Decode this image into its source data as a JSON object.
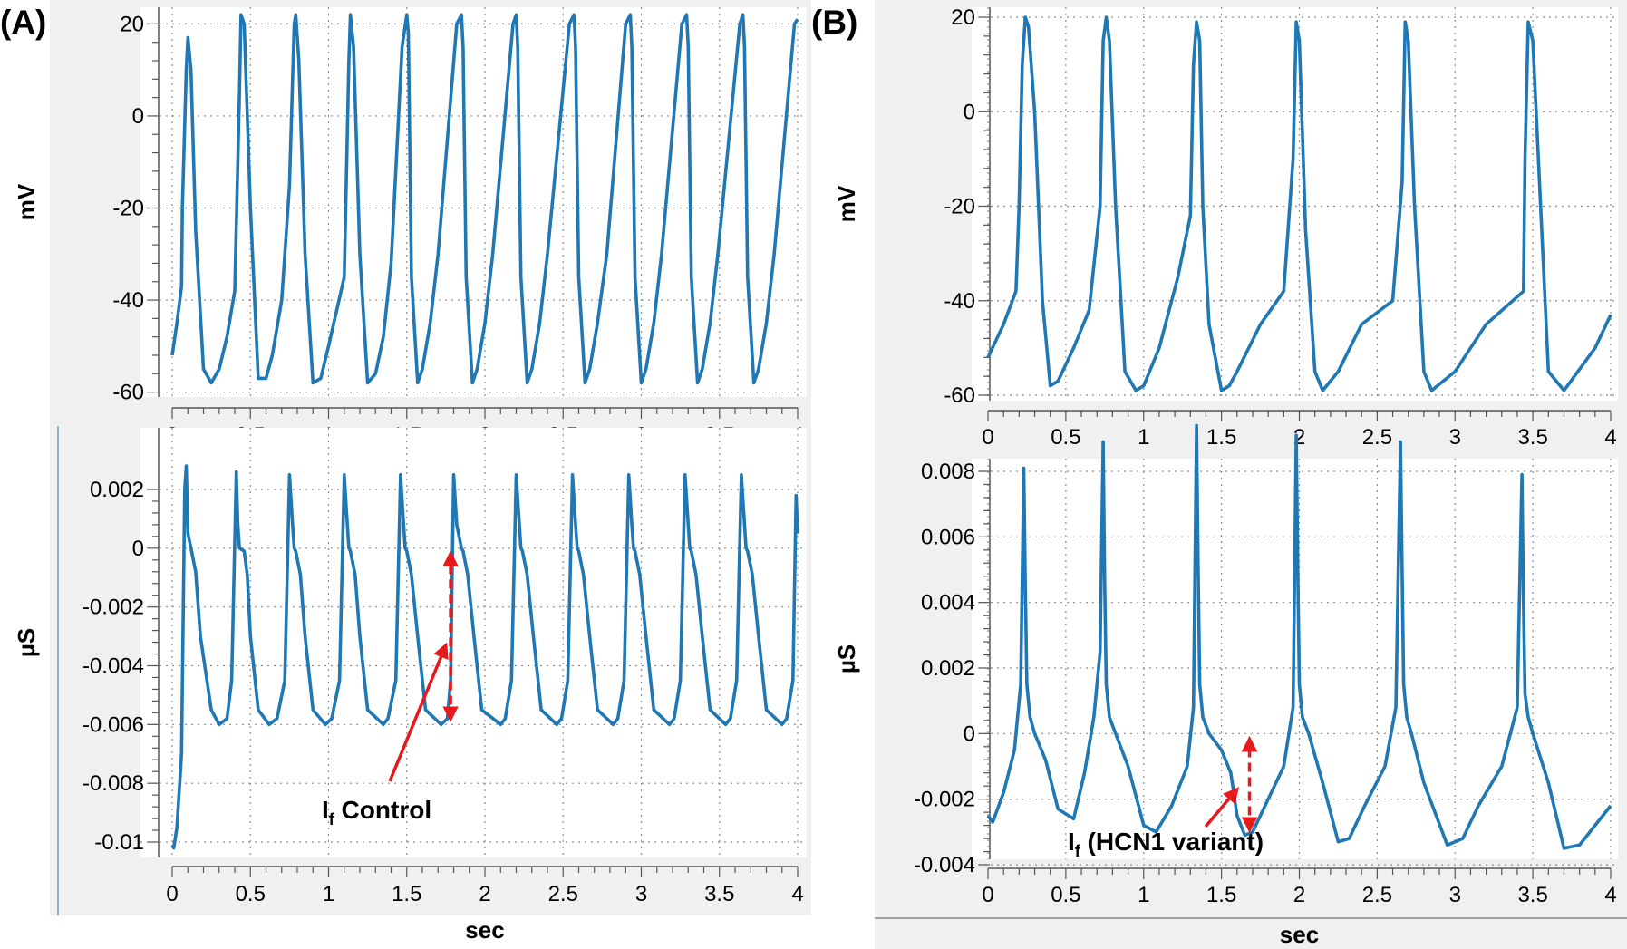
{
  "colors": {
    "trace": "#1f77b4",
    "annotation": "#e8191c",
    "plot_bg": "#ffffff",
    "frame_bg": "#f0f0f0",
    "grid": "#8c8c8c"
  },
  "panels": [
    {
      "id": "A",
      "label": "(A)"
    },
    {
      "id": "B",
      "label": "(B)"
    }
  ],
  "chart_data": [
    {
      "panel": "A",
      "type": "line",
      "title": "",
      "xlabel": "",
      "ylabel": "mV",
      "xlim": [
        0,
        4
      ],
      "ylim": [
        -61,
        24
      ],
      "xticks": [
        "0",
        "0.5",
        "1",
        "1.5",
        "2",
        "2.5",
        "3",
        "3.5",
        "4"
      ],
      "yticks": [
        "20",
        "0",
        "-20",
        "-40",
        "-60"
      ],
      "grid": true,
      "annotations": [],
      "series": [
        {
          "x": [
            0,
            0.03,
            0.06,
            0.065,
            0.09,
            0.1,
            0.12,
            0.15,
            0.2,
            0.25,
            0.3,
            0.35,
            0.4,
            0.43,
            0.44,
            0.46,
            0.5,
            0.55,
            0.6,
            0.64,
            0.7,
            0.75,
            0.78,
            0.79,
            0.81,
            0.85,
            0.9,
            0.95,
            1.0,
            1.1,
            1.13,
            1.14,
            1.16,
            1.2,
            1.25,
            1.3,
            1.35,
            1.4,
            1.47,
            1.5,
            1.51,
            1.53,
            1.57,
            1.6,
            1.65,
            1.7,
            1.82,
            1.85,
            1.86,
            1.88,
            1.92,
            1.95,
            2.0,
            2.05,
            2.18,
            2.2,
            2.21,
            2.23,
            2.27,
            2.3,
            2.35,
            2.4,
            2.54,
            2.57,
            2.58,
            2.6,
            2.64,
            2.67,
            2.72,
            2.78,
            2.9,
            2.93,
            2.94,
            2.96,
            3.0,
            3.03,
            3.08,
            3.13,
            3.26,
            3.29,
            3.3,
            3.32,
            3.36,
            3.39,
            3.44,
            3.49,
            3.63,
            3.65,
            3.66,
            3.68,
            3.72,
            3.75,
            3.8,
            3.85,
            3.98,
            4.0
          ],
          "y": [
            -52,
            -45,
            -37,
            -20,
            10,
            17,
            10,
            -25,
            -55,
            -58,
            -55,
            -48,
            -38,
            5,
            22,
            20,
            -20,
            -57,
            -57,
            -52,
            -40,
            -15,
            20,
            22,
            12,
            -30,
            -58,
            -57,
            -50,
            -35,
            12,
            22,
            15,
            -30,
            -58,
            -56,
            -48,
            -32,
            15,
            22,
            18,
            -35,
            -58,
            -55,
            -45,
            -30,
            20,
            22,
            15,
            -35,
            -58,
            -55,
            -45,
            -30,
            20,
            22,
            15,
            -35,
            -58,
            -55,
            -45,
            -30,
            20,
            22,
            15,
            -35,
            -58,
            -55,
            -45,
            -30,
            20,
            22,
            15,
            -35,
            -58,
            -55,
            -45,
            -30,
            20,
            22,
            15,
            -35,
            -58,
            -55,
            -45,
            -30,
            20,
            22,
            15,
            -35,
            -58,
            -55,
            -45,
            -30,
            20,
            21
          ]
        }
      ]
    },
    {
      "panel": "A",
      "type": "line",
      "title": "",
      "xlabel": "sec",
      "ylabel": "µS",
      "xlim": [
        0,
        4
      ],
      "ylim": [
        -0.0105,
        0.0033
      ],
      "xticks": [
        "0",
        "0.5",
        "1",
        "1.5",
        "2",
        "2.5",
        "3",
        "3.5",
        "4"
      ],
      "yticks": [
        "0.002",
        "0",
        "-0.002",
        "-0.004",
        "-0.006",
        "-0.008",
        "-0.01"
      ],
      "grid": true,
      "annotations": [
        {
          "text": "If Control",
          "main": "I",
          "sub": "f",
          "rest": " Control",
          "target": [
            1.75,
            -0.0033
          ],
          "arrow_between": [
            [
              1.78,
              -0.006
            ],
            [
              1.78,
              0
            ]
          ]
        }
      ],
      "series": [
        {
          "x": [
            0,
            0.01,
            0.03,
            0.06,
            0.08,
            0.09,
            0.1,
            0.12,
            0.15,
            0.18,
            0.25,
            0.3,
            0.35,
            0.38,
            0.41,
            0.42,
            0.43,
            0.46,
            0.48,
            0.5,
            0.55,
            0.62,
            0.67,
            0.72,
            0.75,
            0.77,
            0.78,
            0.79,
            0.82,
            0.85,
            0.9,
            0.98,
            1.02,
            1.07,
            1.1,
            1.12,
            1.13,
            1.14,
            1.17,
            1.2,
            1.25,
            1.35,
            1.38,
            1.43,
            1.46,
            1.48,
            1.49,
            1.5,
            1.53,
            1.57,
            1.62,
            1.72,
            1.76,
            1.78,
            1.8,
            1.82,
            1.85,
            1.86,
            1.89,
            1.93,
            1.98,
            2.1,
            2.13,
            2.17,
            2.2,
            2.22,
            2.23,
            2.24,
            2.27,
            2.31,
            2.36,
            2.46,
            2.49,
            2.53,
            2.56,
            2.58,
            2.59,
            2.6,
            2.63,
            2.67,
            2.72,
            2.82,
            2.85,
            2.89,
            2.92,
            2.94,
            2.95,
            2.96,
            2.99,
            3.03,
            3.08,
            3.18,
            3.21,
            3.25,
            3.28,
            3.3,
            3.31,
            3.32,
            3.35,
            3.39,
            3.44,
            3.54,
            3.57,
            3.61,
            3.64,
            3.66,
            3.67,
            3.68,
            3.71,
            3.75,
            3.8,
            3.9,
            3.93,
            3.97,
            3.99,
            4.0
          ],
          "y": [
            -0.0101,
            -0.0102,
            -0.0095,
            -0.007,
            0.002,
            0.0028,
            0.0005,
            0.0,
            -0.0008,
            -0.003,
            -0.0055,
            -0.006,
            -0.0058,
            -0.0045,
            0.0026,
            0.0008,
            0.0,
            -0.0001,
            -0.0009,
            -0.003,
            -0.0055,
            -0.006,
            -0.0058,
            -0.0045,
            0.0025,
            0.0008,
            0.0,
            -0.0001,
            -0.0009,
            -0.003,
            -0.0055,
            -0.006,
            -0.0058,
            -0.0045,
            0.0025,
            0.0008,
            0.0,
            -0.0001,
            -0.0009,
            -0.003,
            -0.0055,
            -0.006,
            -0.0058,
            -0.0045,
            0.0025,
            0.0008,
            0.0,
            -0.0001,
            -0.0009,
            -0.003,
            -0.0055,
            -0.006,
            -0.0058,
            -0.0045,
            0.0025,
            0.0008,
            0.0,
            -0.0001,
            -0.0009,
            -0.003,
            -0.0055,
            -0.006,
            -0.0058,
            -0.0045,
            0.0025,
            0.0008,
            0.0,
            -0.0001,
            -0.0009,
            -0.003,
            -0.0055,
            -0.006,
            -0.0058,
            -0.0045,
            0.0025,
            0.0008,
            0.0,
            -0.0001,
            -0.0009,
            -0.003,
            -0.0055,
            -0.006,
            -0.0058,
            -0.0045,
            0.0025,
            0.0008,
            0.0,
            -0.0001,
            -0.0009,
            -0.003,
            -0.0055,
            -0.006,
            -0.0058,
            -0.0045,
            0.0025,
            0.0008,
            0.0,
            -0.0001,
            -0.0009,
            -0.003,
            -0.0055,
            -0.006,
            -0.0058,
            -0.0045,
            0.0025,
            0.0008,
            0.0,
            -0.0001,
            -0.0009,
            -0.003,
            -0.0055,
            -0.006,
            -0.0058,
            -0.0045,
            0.0018,
            0.0005
          ]
        }
      ]
    },
    {
      "panel": "B",
      "type": "line",
      "title": "",
      "xlabel": "",
      "ylabel": "mV",
      "xlim": [
        0,
        4
      ],
      "ylim": [
        -61,
        22
      ],
      "xticks": [
        "0",
        "0.5",
        "1",
        "1.5",
        "2",
        "2.5",
        "3",
        "3.5",
        "4"
      ],
      "yticks": [
        "20",
        "0",
        "-20",
        "-40",
        "-60"
      ],
      "grid": true,
      "annotations": [],
      "series": [
        {
          "x": [
            0,
            0.1,
            0.18,
            0.2,
            0.22,
            0.24,
            0.26,
            0.3,
            0.35,
            0.4,
            0.45,
            0.55,
            0.65,
            0.72,
            0.74,
            0.76,
            0.78,
            0.82,
            0.88,
            0.95,
            1.0,
            1.1,
            1.22,
            1.3,
            1.32,
            1.34,
            1.36,
            1.38,
            1.42,
            1.5,
            1.55,
            1.6,
            1.75,
            1.9,
            1.96,
            1.98,
            2.0,
            2.04,
            2.1,
            2.15,
            2.25,
            2.4,
            2.6,
            2.66,
            2.68,
            2.7,
            2.74,
            2.8,
            2.85,
            3.0,
            3.2,
            3.44,
            3.45,
            3.47,
            3.5,
            3.55,
            3.6,
            3.7,
            3.9,
            4.0
          ],
          "y": [
            -52,
            -45,
            -38,
            -20,
            10,
            20,
            18,
            0,
            -40,
            -58,
            -57,
            -50,
            -42,
            -20,
            15,
            20,
            15,
            -20,
            -55,
            -59,
            -58,
            -50,
            -35,
            -22,
            10,
            19,
            15,
            -20,
            -45,
            -59,
            -58,
            -55,
            -45,
            -38,
            -10,
            19,
            15,
            -25,
            -55,
            -59,
            -55,
            -45,
            -40,
            -15,
            19,
            15,
            -20,
            -55,
            -59,
            -55,
            -45,
            -38,
            -10,
            19,
            15,
            -20,
            -55,
            -59,
            -50,
            -43
          ]
        }
      ]
    },
    {
      "panel": "B",
      "type": "line",
      "title": "",
      "xlabel": "sec",
      "ylabel": "µS",
      "xlim": [
        0,
        4
      ],
      "ylim": [
        -0.0042,
        0.0096
      ],
      "xticks": [
        "0",
        "0.5",
        "1",
        "1.5",
        "2",
        "2.5",
        "3",
        "3.5",
        "4"
      ],
      "yticks": [
        "0.008",
        "0.006",
        "0.004",
        "0.002",
        "0",
        "-0.002",
        "-0.004"
      ],
      "grid": true,
      "annotations": [
        {
          "text": "If (HCN1 variant)",
          "main": "I",
          "sub": "f",
          "rest": " (HCN1 variant)",
          "target": [
            1.6,
            -0.0017
          ],
          "arrow_between": [
            [
              1.68,
              -0.0031
            ],
            [
              1.68,
              0.0
            ]
          ]
        }
      ],
      "series": [
        {
          "x": [
            0,
            0.03,
            0.1,
            0.17,
            0.21,
            0.23,
            0.24,
            0.25,
            0.27,
            0.3,
            0.37,
            0.45,
            0.55,
            0.62,
            0.68,
            0.72,
            0.74,
            0.75,
            0.76,
            0.78,
            0.82,
            0.9,
            1.0,
            1.08,
            1.18,
            1.28,
            1.32,
            1.34,
            1.35,
            1.36,
            1.38,
            1.42,
            1.5,
            1.56,
            1.6,
            1.65,
            1.7,
            1.78,
            1.9,
            1.96,
            1.98,
            1.99,
            2.0,
            2.02,
            2.06,
            2.15,
            2.25,
            2.32,
            2.42,
            2.55,
            2.62,
            2.65,
            2.66,
            2.67,
            2.69,
            2.72,
            2.8,
            2.95,
            3.05,
            3.15,
            3.3,
            3.4,
            3.43,
            3.44,
            3.45,
            3.47,
            3.5,
            3.6,
            3.7,
            3.8,
            3.9,
            4.0
          ],
          "y": [
            -0.0025,
            -0.0027,
            -0.0018,
            -0.0005,
            0.0015,
            0.0081,
            0.0045,
            0.0015,
            0.0005,
            0.0,
            -0.0008,
            -0.0023,
            -0.0026,
            -0.0012,
            0.0005,
            0.0025,
            0.0089,
            0.0045,
            0.0015,
            0.0005,
            0.0,
            -0.001,
            -0.0028,
            -0.003,
            -0.0022,
            -0.001,
            0.0008,
            0.0094,
            0.005,
            0.0015,
            0.0005,
            0.0,
            -0.0005,
            -0.0012,
            -0.0025,
            -0.0031,
            -0.003,
            -0.0022,
            -0.001,
            0.0008,
            0.0091,
            0.005,
            0.0015,
            0.0005,
            0.0,
            -0.0015,
            -0.0033,
            -0.0032,
            -0.0022,
            -0.001,
            0.0008,
            0.0089,
            0.005,
            0.0015,
            0.0005,
            0.0,
            -0.0015,
            -0.0034,
            -0.0032,
            -0.0022,
            -0.001,
            0.0008,
            0.0079,
            0.004,
            0.0012,
            0.0005,
            0.0,
            -0.0015,
            -0.0035,
            -0.0034,
            -0.0028,
            -0.0022
          ]
        }
      ]
    }
  ]
}
